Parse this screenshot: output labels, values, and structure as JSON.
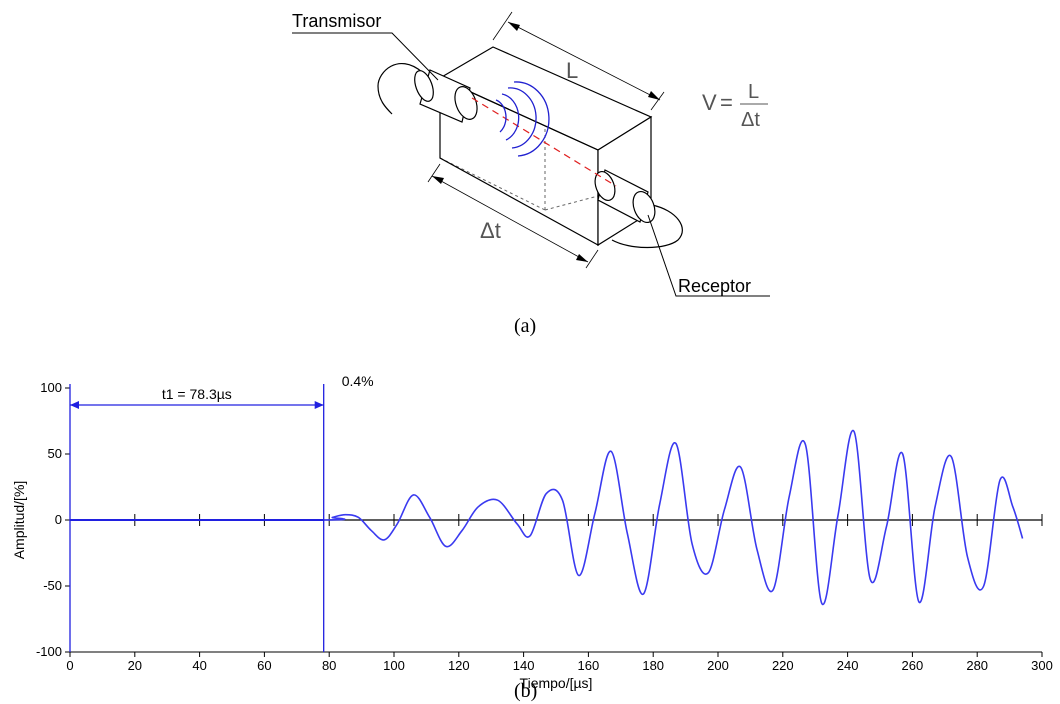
{
  "diagram": {
    "transmitter_label": "Transmisor",
    "receiver_label": "Receptor",
    "length_label": "L",
    "time_label": "Δt",
    "formula": {
      "lhs": "V",
      "equals": "=",
      "numerator": "L",
      "denominator": "Δt"
    },
    "caption": "(a)"
  },
  "chart": {
    "caption": "(b)",
    "marker_label": "t1 = 78.3µs",
    "threshold_label": "0.4%"
  },
  "chart_data": {
    "type": "line",
    "xlabel": "Tiempo/[µs]",
    "ylabel": "Amplitud/[%]",
    "xlim": [
      0,
      300
    ],
    "ylim": [
      -100,
      100
    ],
    "x_ticks": [
      0,
      20,
      40,
      60,
      80,
      100,
      120,
      140,
      160,
      180,
      200,
      220,
      240,
      260,
      280,
      300
    ],
    "y_ticks": [
      100,
      50,
      0,
      -50,
      -100
    ],
    "grid": false,
    "colors": {
      "signal": "#3a3af0",
      "marker": "#2020e0",
      "axis": "#000000"
    },
    "cursor_x": 78.3,
    "series": [
      {
        "x": [
          0,
          78.3,
          81,
          85,
          89,
          93,
          97,
          101,
          106,
          111,
          116,
          121,
          126,
          132,
          138,
          142,
          147,
          152,
          157,
          162,
          167,
          172,
          177,
          182,
          187,
          192,
          197,
          202,
          207,
          212,
          217,
          222,
          227,
          232,
          237,
          242,
          247,
          252,
          257,
          262,
          267,
          272,
          277,
          282,
          287,
          291,
          294
        ],
        "y": [
          0,
          0,
          2,
          4,
          2,
          -8,
          -15,
          -3,
          19,
          2,
          -20,
          -8,
          10,
          15,
          -3,
          -12,
          20,
          15,
          -42,
          5,
          52,
          -10,
          -56,
          12,
          58,
          -18,
          -40,
          8,
          40,
          -22,
          -53,
          18,
          57,
          -63,
          3,
          67,
          -45,
          -5,
          50,
          -62,
          10,
          48,
          -28,
          -50,
          30,
          10,
          -14
        ]
      }
    ]
  }
}
